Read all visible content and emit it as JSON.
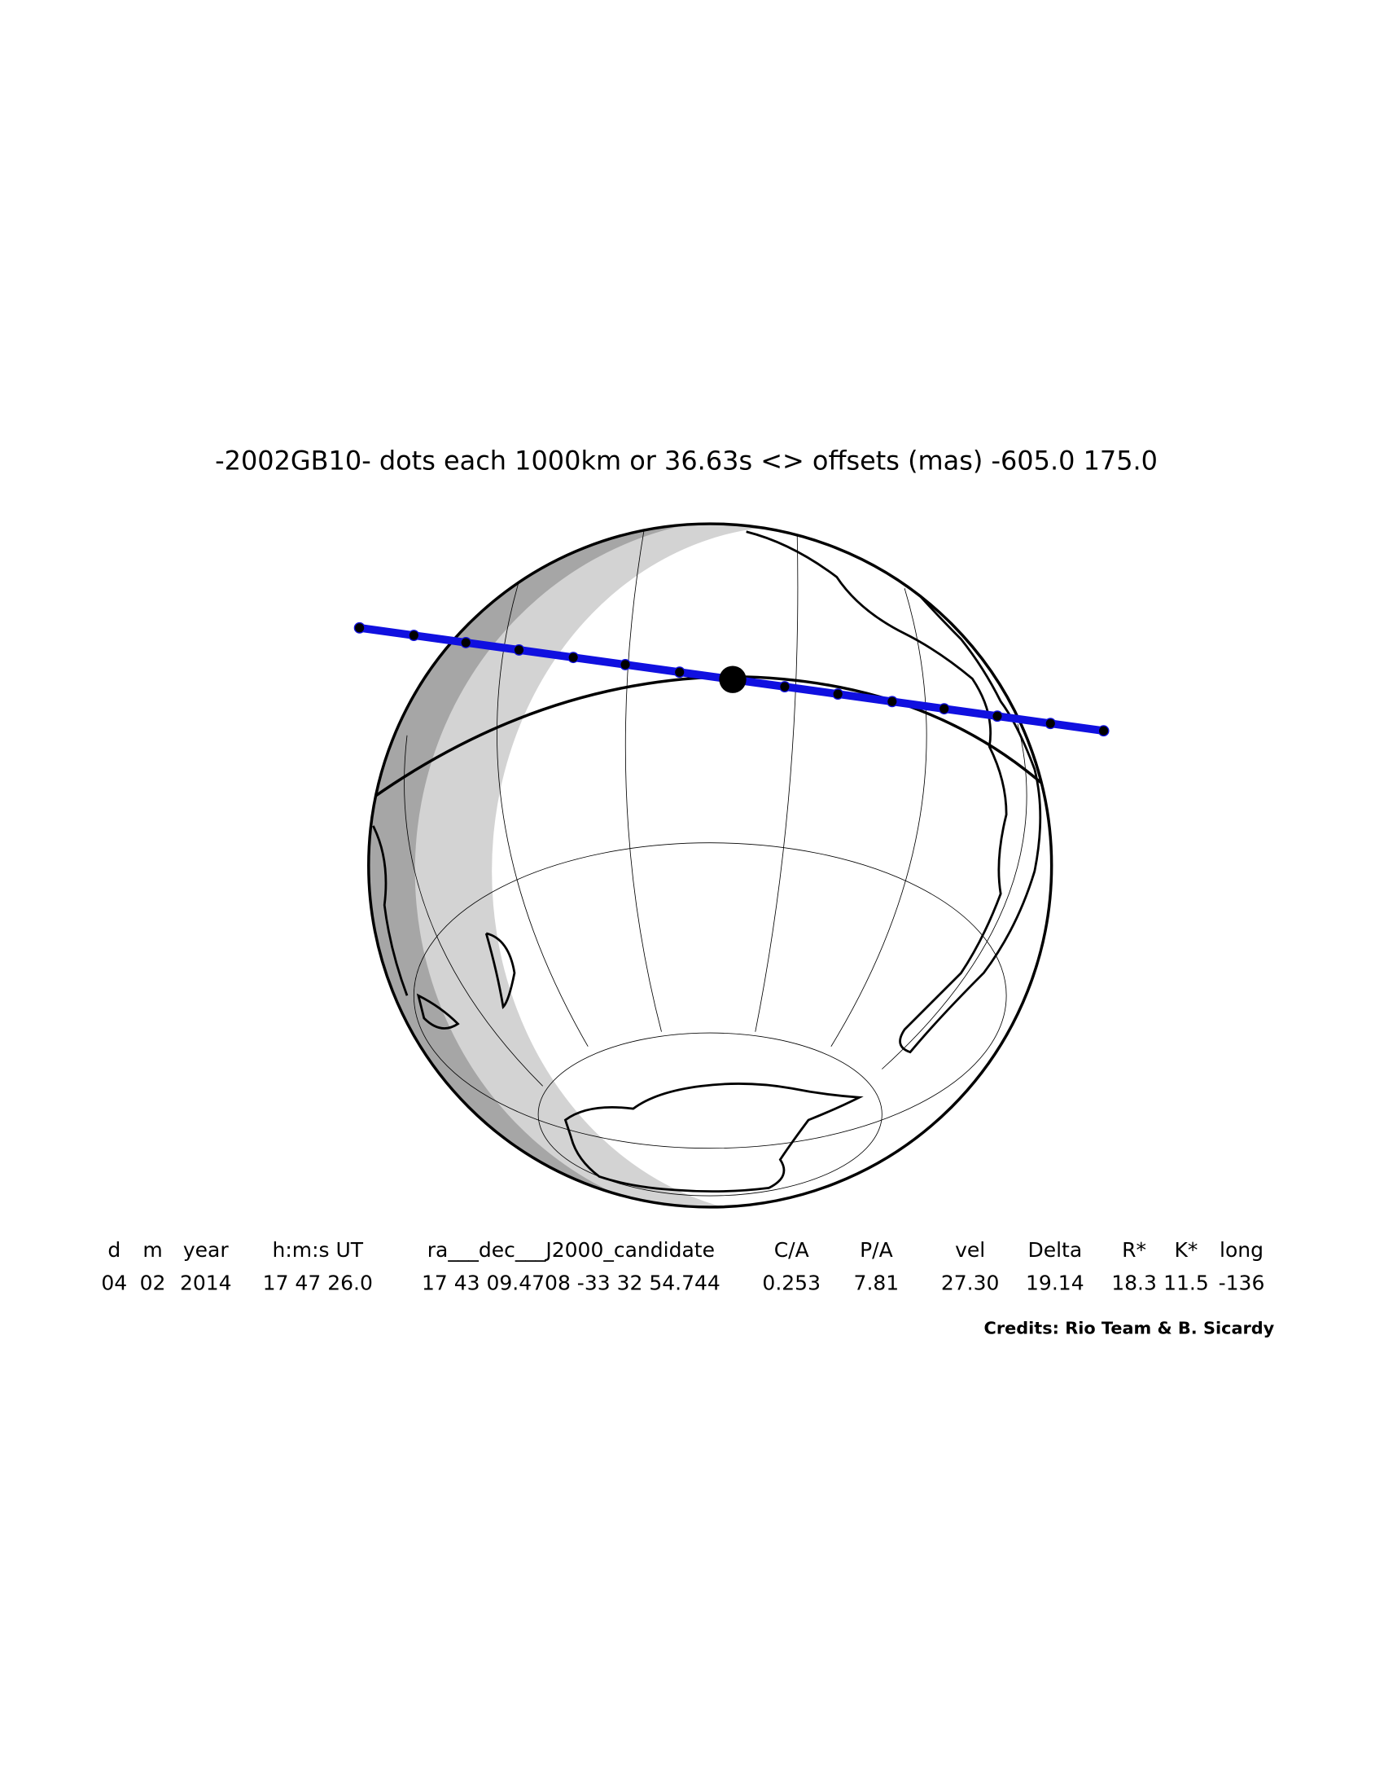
{
  "title": "-2002GB10- dots each 1000km or 36.63s <> offsets (mas) -605.0  175.0",
  "table": {
    "header": [
      "d",
      "m",
      "year",
      "h:m:s UT",
      "ra___dec___J2000_candidate",
      "C/A",
      "P/A",
      "vel",
      "Delta",
      "R*",
      "K*",
      "long"
    ],
    "values": [
      "04",
      "02",
      "2014",
      "17 47 26.0",
      "17 43 09.4708 -33 32 54.744",
      "0.253",
      "7.81",
      "27.30",
      "19.14",
      "18.3",
      "11.5",
      "-136"
    ]
  },
  "credits": "Credits: Rio Team & B. Sicardy"
}
